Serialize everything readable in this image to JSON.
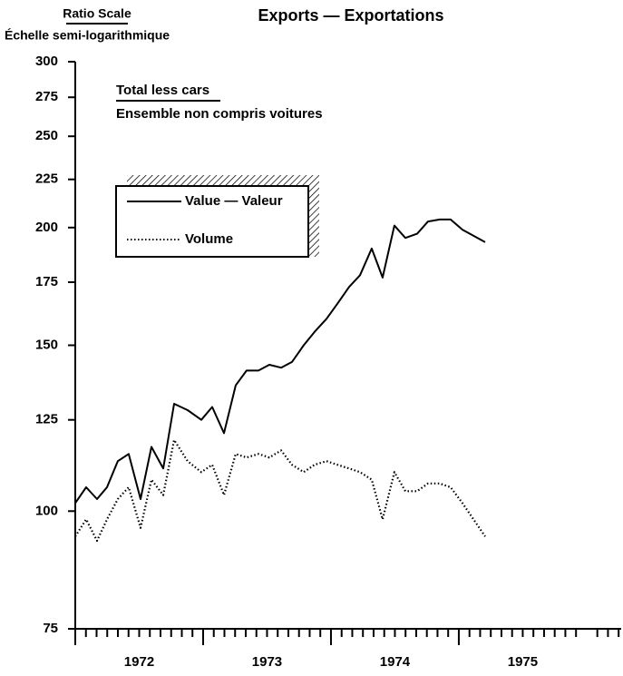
{
  "chart_data": {
    "type": "line",
    "title": "Exports — Exportations",
    "y_axis_label": "Ratio Scale",
    "y_axis_sublabel": "Échelle semi-logarithmique",
    "annotation": "Total less cars",
    "annotation_sub": "Ensemble non compris voitures",
    "log_scale": true,
    "x": [
      1972.0,
      1972.085,
      1972.17,
      1972.248,
      1972.333,
      1972.418,
      1972.511,
      1972.596,
      1972.688,
      1972.773,
      1972.879,
      1972.986,
      1973.071,
      1973.163,
      1973.255,
      1973.34,
      1973.433,
      1973.518,
      1973.61,
      1973.695,
      1973.787,
      1973.872,
      1973.965,
      1974.05,
      1974.142,
      1974.227,
      1974.319,
      1974.404,
      1974.496,
      1974.582,
      1974.674,
      1974.759,
      1974.851,
      1974.936,
      1975.028,
      1975.206
    ],
    "series": [
      {
        "name": "Value — Valeur",
        "color": "#000000",
        "style": "solid",
        "values": [
          102,
          106,
          103,
          106,
          113,
          115,
          103,
          117,
          111,
          130,
          128,
          125,
          129,
          121,
          136,
          141,
          141,
          143,
          142,
          144,
          150,
          155,
          160,
          166,
          173,
          178,
          190,
          177,
          201,
          195,
          197,
          203,
          204,
          204,
          199,
          193
        ]
      },
      {
        "name": "Volume",
        "color": "#000000",
        "style": "dotted",
        "values": [
          94,
          98,
          93,
          98,
          103,
          106,
          96,
          108,
          104,
          119,
          113,
          110,
          112,
          104,
          115,
          114,
          115,
          114,
          116,
          112,
          110,
          112,
          113,
          112,
          111,
          110,
          108,
          98,
          110,
          105,
          105,
          107,
          107,
          106,
          102,
          94
        ]
      }
    ],
    "xlim": [
      1972.0,
      1976.27
    ],
    "xticks": [
      1972,
      1973,
      1974,
      1975
    ],
    "ylim": [
      75,
      300
    ],
    "yticks": [
      75,
      100,
      125,
      150,
      175,
      200,
      225,
      250,
      275,
      300
    ]
  }
}
